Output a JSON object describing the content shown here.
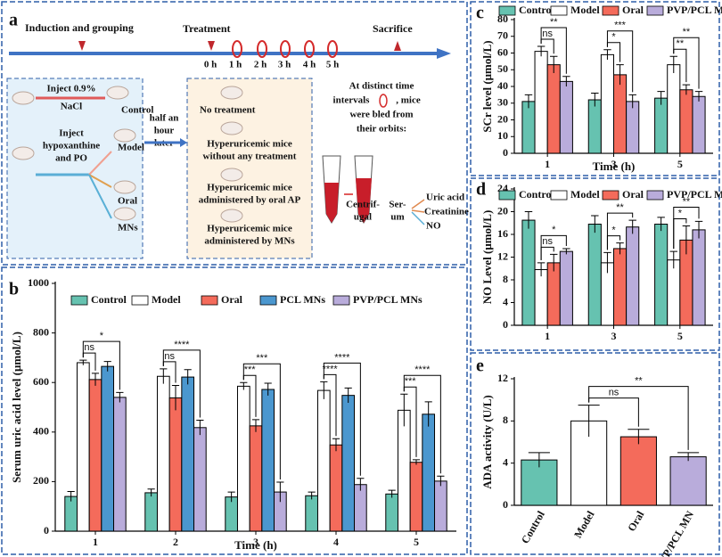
{
  "panel_a": {
    "label": "a",
    "timeline": {
      "induction": "Induction and grouping",
      "treatment": "Treatment",
      "sacrifice": "Sacrifice",
      "times": [
        "0 h",
        "1 h",
        "2 h",
        "3 h",
        "4 h",
        "5 h"
      ]
    },
    "grouping": {
      "nacl": [
        "Inject 0.9%",
        "NaCl"
      ],
      "control": "Control",
      "inject": [
        "Inject",
        "hypoxanthine",
        "and PO"
      ],
      "model": "Model",
      "oral": "Oral",
      "mns": "MNs"
    },
    "wait": [
      "half an",
      "hour",
      "later"
    ],
    "treatments": {
      "none": "No treatment",
      "model": [
        "Hyperuricemic mice",
        "without any treatment"
      ],
      "oral": [
        "Hyperuricemic mice",
        "administered by oral AP"
      ],
      "mns": [
        "Hyperuricemic mice",
        "administered by MNs"
      ]
    },
    "sampling": {
      "lines": [
        "At distinct time",
        "intervals",
        ", mice",
        "were bled from",
        "their orbits:"
      ],
      "centrifugal": [
        "Centrif-",
        "ugal"
      ],
      "serum": [
        "Ser-",
        "um"
      ],
      "outputs": [
        "Uric acid",
        "Creatinine",
        "NO"
      ]
    }
  },
  "chart_data": [
    {
      "type": "bar",
      "label": "b",
      "x_label": "Time (h)",
      "y_label": "Serum uric acid level (μmol/L)",
      "categories": [
        "1",
        "2",
        "3",
        "4",
        "5"
      ],
      "series": [
        {
          "name": "Control",
          "color": "#66c2b0",
          "values": [
            140,
            155,
            138,
            143,
            150
          ],
          "errors": [
            20,
            15,
            20,
            15,
            15
          ]
        },
        {
          "name": "Model",
          "color": "#ffffff",
          "values": [
            680,
            625,
            585,
            568,
            488
          ],
          "errors": [
            10,
            30,
            15,
            35,
            65
          ]
        },
        {
          "name": "Oral",
          "color": "#f46b5b",
          "values": [
            612,
            538,
            425,
            348,
            278
          ],
          "errors": [
            25,
            50,
            25,
            25,
            10
          ]
        },
        {
          "name": "PCL MNs",
          "color": "#4b97cf",
          "values": [
            665,
            622,
            572,
            548,
            472
          ],
          "errors": [
            20,
            30,
            25,
            30,
            50
          ]
        },
        {
          "name": "PVP/PCL MNs",
          "color": "#b9acdb",
          "values": [
            540,
            418,
            158,
            188,
            202
          ],
          "errors": [
            20,
            30,
            40,
            25,
            20
          ]
        }
      ],
      "ylim": [
        0,
        1000
      ],
      "yticks": [
        0,
        200,
        400,
        600,
        800,
        1000
      ],
      "brackets": [
        {
          "category": 0,
          "from": 1,
          "to": 2,
          "label": "ns"
        },
        {
          "category": 0,
          "from": 1,
          "to": 4,
          "label": "*"
        },
        {
          "category": 1,
          "from": 1,
          "to": 2,
          "label": "ns"
        },
        {
          "category": 1,
          "from": 1,
          "to": 4,
          "label": "****"
        },
        {
          "category": 2,
          "from": 1,
          "to": 2,
          "label": "***"
        },
        {
          "category": 2,
          "from": 1,
          "to": 4,
          "label": "***"
        },
        {
          "category": 3,
          "from": 1,
          "to": 2,
          "label": "****"
        },
        {
          "category": 3,
          "from": 1,
          "to": 4,
          "label": "****"
        },
        {
          "category": 4,
          "from": 1,
          "to": 2,
          "label": "***"
        },
        {
          "category": 4,
          "from": 1,
          "to": 4,
          "label": "****"
        }
      ]
    },
    {
      "type": "bar",
      "label": "c",
      "x_label": "Time (h)",
      "y_label": "SCr level (μmol/L)",
      "categories": [
        "1",
        "3",
        "5"
      ],
      "series": [
        {
          "name": "Control",
          "color": "#66c2b0",
          "values": [
            31,
            32,
            33
          ],
          "errors": [
            4,
            4,
            4
          ]
        },
        {
          "name": "Model",
          "color": "#ffffff",
          "values": [
            61,
            59,
            53
          ],
          "errors": [
            3,
            3,
            5
          ]
        },
        {
          "name": "Oral",
          "color": "#f46b5b",
          "values": [
            53,
            47,
            38
          ],
          "errors": [
            5,
            6,
            3
          ]
        },
        {
          "name": "PVP/PCL MNs",
          "color": "#b9acdb",
          "values": [
            43,
            31,
            34
          ],
          "errors": [
            3,
            4,
            3
          ]
        }
      ],
      "ylim": [
        0,
        80
      ],
      "yticks": [
        0,
        10,
        20,
        30,
        40,
        50,
        60,
        70,
        80
      ],
      "brackets": [
        {
          "category": 0,
          "from": 1,
          "to": 2,
          "label": "ns"
        },
        {
          "category": 0,
          "from": 1,
          "to": 3,
          "label": "**"
        },
        {
          "category": 1,
          "from": 1,
          "to": 2,
          "label": "*"
        },
        {
          "category": 1,
          "from": 1,
          "to": 3,
          "label": "***"
        },
        {
          "category": 2,
          "from": 1,
          "to": 2,
          "label": "**"
        },
        {
          "category": 2,
          "from": 1,
          "to": 3,
          "label": "**"
        }
      ]
    },
    {
      "type": "bar",
      "label": "d",
      "y_label": "NO Level (μmol/L)",
      "categories": [
        "1",
        "3",
        "5"
      ],
      "series": [
        {
          "name": "Control",
          "color": "#66c2b0",
          "values": [
            18.5,
            17.8,
            17.8
          ],
          "errors": [
            1.5,
            1.5,
            1.2
          ]
        },
        {
          "name": "Model",
          "color": "#ffffff",
          "values": [
            9.8,
            11,
            11.5
          ],
          "errors": [
            1.2,
            1.8,
            1.5
          ]
        },
        {
          "name": "Oral",
          "color": "#f46b5b",
          "values": [
            11,
            13.5,
            15
          ],
          "errors": [
            1.5,
            1,
            2.5
          ]
        },
        {
          "name": "PVP/PCL MNs",
          "color": "#b9acdb",
          "values": [
            13,
            17.3,
            16.8
          ],
          "errors": [
            0.5,
            1.2,
            1.5
          ]
        }
      ],
      "ylim": [
        0,
        24
      ],
      "yticks": [
        0,
        4,
        8,
        12,
        16,
        20,
        24
      ],
      "brackets": [
        {
          "category": 0,
          "from": 1,
          "to": 2,
          "label": "ns"
        },
        {
          "category": 0,
          "from": 1,
          "to": 3,
          "label": "*"
        },
        {
          "category": 1,
          "from": 1,
          "to": 2,
          "label": "*"
        },
        {
          "category": 1,
          "from": 1,
          "to": 3,
          "label": "**"
        },
        {
          "category": 2,
          "from": 1,
          "to": 2,
          "label": "*"
        },
        {
          "category": 2,
          "from": 1,
          "to": 3,
          "label": "**"
        }
      ]
    },
    {
      "type": "bar",
      "label": "e",
      "y_label": "ADA activity (U/L)",
      "categories": [
        "Control",
        "Model",
        "Oral",
        "PVP/PCL MN"
      ],
      "values": [
        4.3,
        8.0,
        6.5,
        4.6
      ],
      "errors": [
        0.7,
        1.5,
        0.7,
        0.4
      ],
      "colors": [
        "#66c2b0",
        "#ffffff",
        "#f46b5b",
        "#b9acdb"
      ],
      "ylim": [
        0,
        12
      ],
      "yticks": [
        0,
        4,
        8,
        12
      ],
      "brackets": [
        {
          "from": 1,
          "to": 2,
          "label": "ns"
        },
        {
          "from": 1,
          "to": 3,
          "label": "**"
        }
      ]
    }
  ]
}
